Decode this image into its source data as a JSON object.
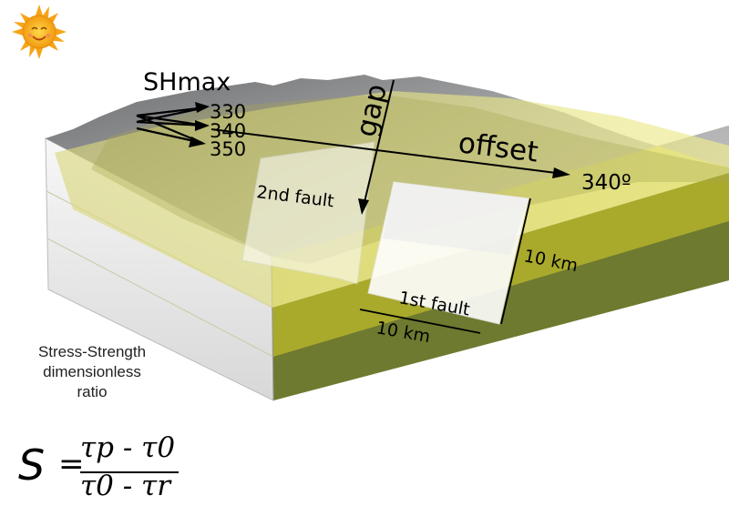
{
  "shmax": {
    "title": "SHmax",
    "angles": [
      "330",
      "340",
      "350"
    ]
  },
  "labels": {
    "gap": "gap",
    "offset": "offset",
    "offset_angle": "340º",
    "second_fault": "2nd fault",
    "first_fault": "1st fault",
    "depth_km": "10 km",
    "length_km": "10 km"
  },
  "caption": {
    "line1": "Stress-Strength",
    "line2": "dimensionless",
    "line3": "ratio"
  },
  "formula": {
    "symbol": "S",
    "equals": "=",
    "numerator": "τp - τ0",
    "denominator": "τ0 - τr"
  },
  "colors": {
    "surface": "#8f9091",
    "layer_light": "#e6e68c",
    "layer_mid": "#bcbc35",
    "layer_dark": "#6f7a2c",
    "front_face": "#efefef",
    "sun": "#f6b21c"
  },
  "icons": {
    "sun": "sun-icon"
  }
}
